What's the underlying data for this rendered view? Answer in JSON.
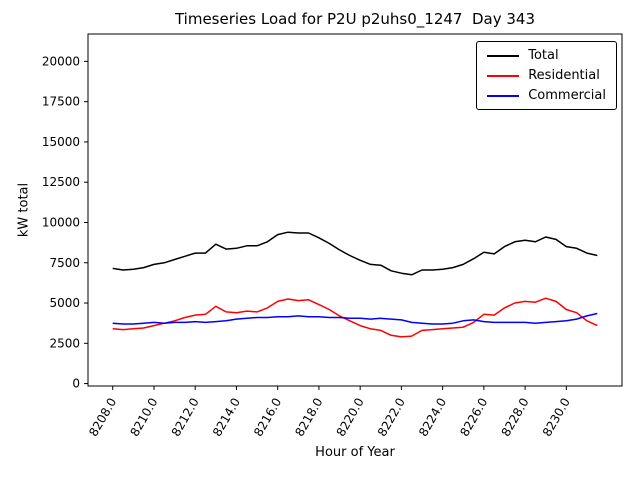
{
  "chart_data": {
    "type": "line",
    "title": "Timeseries Load for P2U p2uhs0_1247  Day 343",
    "xlabel": "Hour of Year",
    "ylabel": "kW total",
    "grid": false,
    "legend": {
      "position": "upper right"
    },
    "xlim": [
      8206.8,
      8232.7
    ],
    "ylim": [
      -150,
      21700
    ],
    "yticks": [
      0,
      2500,
      5000,
      7500,
      10000,
      12500,
      15000,
      17500,
      20000
    ],
    "xticks": {
      "values": [
        8208,
        8210,
        8212,
        8214,
        8216,
        8218,
        8220,
        8222,
        8224,
        8226,
        8228,
        8230
      ],
      "labels": [
        "8208.0",
        "8210.0",
        "8212.0",
        "8214.0",
        "8216.0",
        "8218.0",
        "8220.0",
        "8222.0",
        "8224.0",
        "8226.0",
        "8228.0",
        "8230.0"
      ]
    },
    "x": [
      8208,
      8208.5,
      8209,
      8209.5,
      8210,
      8210.5,
      8211,
      8211.5,
      8212,
      8212.5,
      8213,
      8213.5,
      8214,
      8214.5,
      8215,
      8215.5,
      8216,
      8216.5,
      8217,
      8217.5,
      8218,
      8218.5,
      8219,
      8219.5,
      8220,
      8220.5,
      8221,
      8221.5,
      8222,
      8222.5,
      8223,
      8223.5,
      8224,
      8224.5,
      8225,
      8225.5,
      8226,
      8226.5,
      8227,
      8227.5,
      8228,
      8228.5,
      8229,
      8229.5,
      8230,
      8230.5,
      8231,
      8231.5
    ],
    "series": [
      {
        "name": "Total",
        "color": "#000000",
        "values": [
          7150,
          7050,
          7100,
          7200,
          7400,
          7500,
          7700,
          7900,
          8100,
          8100,
          8650,
          8350,
          8400,
          8550,
          8550,
          8800,
          9250,
          9400,
          9350,
          9350,
          9050,
          8700,
          8300,
          7950,
          7650,
          7400,
          7350,
          7000,
          6850,
          6750,
          7050,
          7050,
          7100,
          7200,
          7400,
          7750,
          8150,
          8050,
          8500,
          8800,
          8900,
          8800,
          9100,
          8950,
          8500,
          8400,
          8100,
          7950
        ]
      },
      {
        "name": "Residential",
        "color": "#ff0000",
        "values": [
          3400,
          3350,
          3400,
          3450,
          3600,
          3750,
          3900,
          4100,
          4250,
          4300,
          4800,
          4450,
          4400,
          4500,
          4450,
          4700,
          5100,
          5250,
          5150,
          5200,
          4900,
          4600,
          4200,
          3900,
          3600,
          3400,
          3300,
          3000,
          2900,
          2950,
          3300,
          3350,
          3400,
          3450,
          3500,
          3800,
          4300,
          4250,
          4700,
          5000,
          5100,
          5050,
          5300,
          5100,
          4600,
          4400,
          3900,
          3600
        ]
      },
      {
        "name": "Commercial",
        "color": "#0000ff",
        "values": [
          3750,
          3700,
          3700,
          3750,
          3800,
          3750,
          3800,
          3800,
          3850,
          3800,
          3850,
          3900,
          4000,
          4050,
          4100,
          4100,
          4150,
          4150,
          4200,
          4150,
          4150,
          4100,
          4100,
          4050,
          4050,
          4000,
          4050,
          4000,
          3950,
          3800,
          3750,
          3700,
          3700,
          3750,
          3900,
          3950,
          3850,
          3800,
          3800,
          3800,
          3800,
          3750,
          3800,
          3850,
          3900,
          4000,
          4200,
          4350
        ]
      }
    ]
  }
}
